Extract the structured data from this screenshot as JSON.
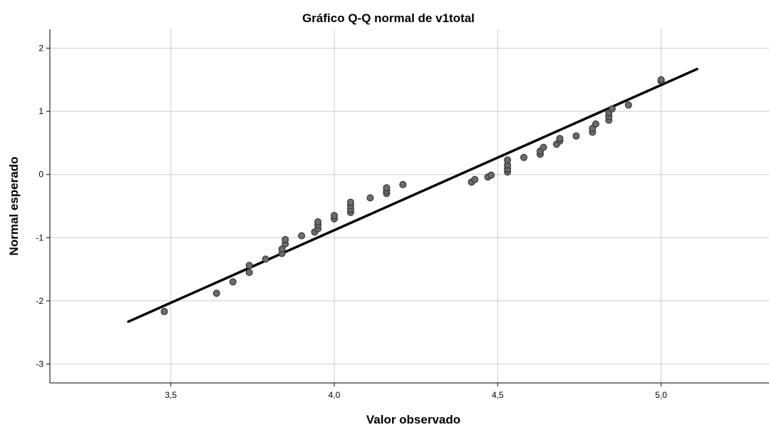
{
  "chart_data": {
    "type": "scatter",
    "title": "Gráfico Q-Q normal de v1total",
    "xlabel": "Valor observado",
    "ylabel": "Normal esperado",
    "xlim": [
      3.13,
      5.33
    ],
    "ylim": [
      -3.3,
      2.3
    ],
    "x_ticks": [
      3.5,
      4.0,
      4.5,
      5.0
    ],
    "x_tick_labels": [
      "3,5",
      "4,0",
      "4,5",
      "5,0"
    ],
    "y_ticks": [
      -3,
      -2,
      -1,
      0,
      1,
      2
    ],
    "y_tick_labels": [
      "-3",
      "-2",
      "-1",
      "0",
      "1",
      "2"
    ],
    "grid": true,
    "points": [
      [
        3.48,
        -2.17
      ],
      [
        3.64,
        -1.88
      ],
      [
        3.69,
        -1.7
      ],
      [
        3.74,
        -1.55
      ],
      [
        3.74,
        -1.44
      ],
      [
        3.79,
        -1.34
      ],
      [
        3.84,
        -1.25
      ],
      [
        3.84,
        -1.18
      ],
      [
        3.85,
        -1.1
      ],
      [
        3.85,
        -1.03
      ],
      [
        3.9,
        -0.97
      ],
      [
        3.94,
        -0.91
      ],
      [
        3.95,
        -0.86
      ],
      [
        3.95,
        -0.8
      ],
      [
        3.95,
        -0.75
      ],
      [
        4.0,
        -0.7
      ],
      [
        4.0,
        -0.65
      ],
      [
        4.05,
        -0.6
      ],
      [
        4.05,
        -0.55
      ],
      [
        4.05,
        -0.49
      ],
      [
        4.05,
        -0.44
      ],
      [
        4.11,
        -0.37
      ],
      [
        4.16,
        -0.3
      ],
      [
        4.16,
        -0.26
      ],
      [
        4.16,
        -0.21
      ],
      [
        4.21,
        -0.16
      ],
      [
        4.42,
        -0.12
      ],
      [
        4.43,
        -0.08
      ],
      [
        4.47,
        -0.04
      ],
      [
        4.48,
        -0.01
      ],
      [
        4.53,
        0.04
      ],
      [
        4.53,
        0.09
      ],
      [
        4.53,
        0.15
      ],
      [
        4.53,
        0.23
      ],
      [
        4.58,
        0.27
      ],
      [
        4.63,
        0.32
      ],
      [
        4.63,
        0.37
      ],
      [
        4.64,
        0.43
      ],
      [
        4.68,
        0.48
      ],
      [
        4.69,
        0.53
      ],
      [
        4.69,
        0.57
      ],
      [
        4.74,
        0.61
      ],
      [
        4.79,
        0.67
      ],
      [
        4.79,
        0.73
      ],
      [
        4.8,
        0.8
      ],
      [
        4.84,
        0.86
      ],
      [
        4.84,
        0.92
      ],
      [
        4.84,
        0.98
      ],
      [
        4.85,
        1.04
      ],
      [
        4.9,
        1.1
      ],
      [
        5.0,
        1.48
      ],
      [
        5.0,
        1.5
      ]
    ],
    "reference_line": [
      [
        3.37,
        -2.33
      ],
      [
        5.11,
        1.67
      ]
    ],
    "point_color": "#6b6b6b",
    "point_edge_color": "#2a2a2a",
    "line_color": "#000000",
    "grid_color": "#cccccc"
  }
}
